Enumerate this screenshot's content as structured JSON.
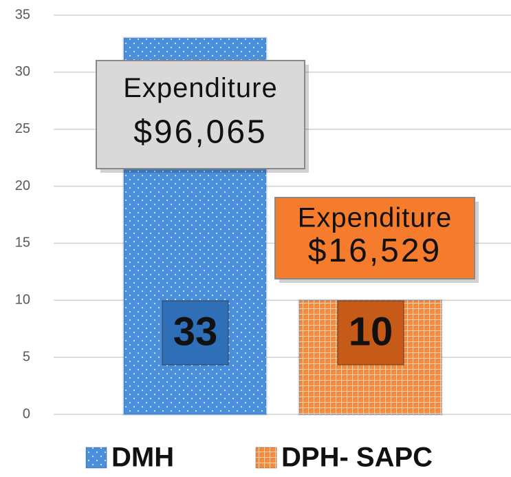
{
  "chart_data": {
    "type": "bar",
    "categories": [
      null
    ],
    "series": [
      {
        "name": "DMH",
        "color": "#4a8fdc",
        "values": [
          33
        ]
      },
      {
        "name": "DPH- SAPC",
        "color": "#f58a3e",
        "values": [
          10
        ]
      }
    ],
    "annotations": [
      {
        "lines": [
          "Expenditure",
          "$96,065"
        ],
        "color": "#d9d9d9"
      },
      {
        "lines": [
          "Expenditure",
          "$16,529"
        ],
        "color": "#f47c2c"
      }
    ],
    "label_colors": [
      "#2f6fb8",
      "#c65a18"
    ],
    "ylim": [
      0,
      35
    ],
    "yticks": [
      0,
      5,
      10,
      15,
      20,
      25,
      30,
      35
    ],
    "grid": true,
    "legend": "bottom"
  }
}
